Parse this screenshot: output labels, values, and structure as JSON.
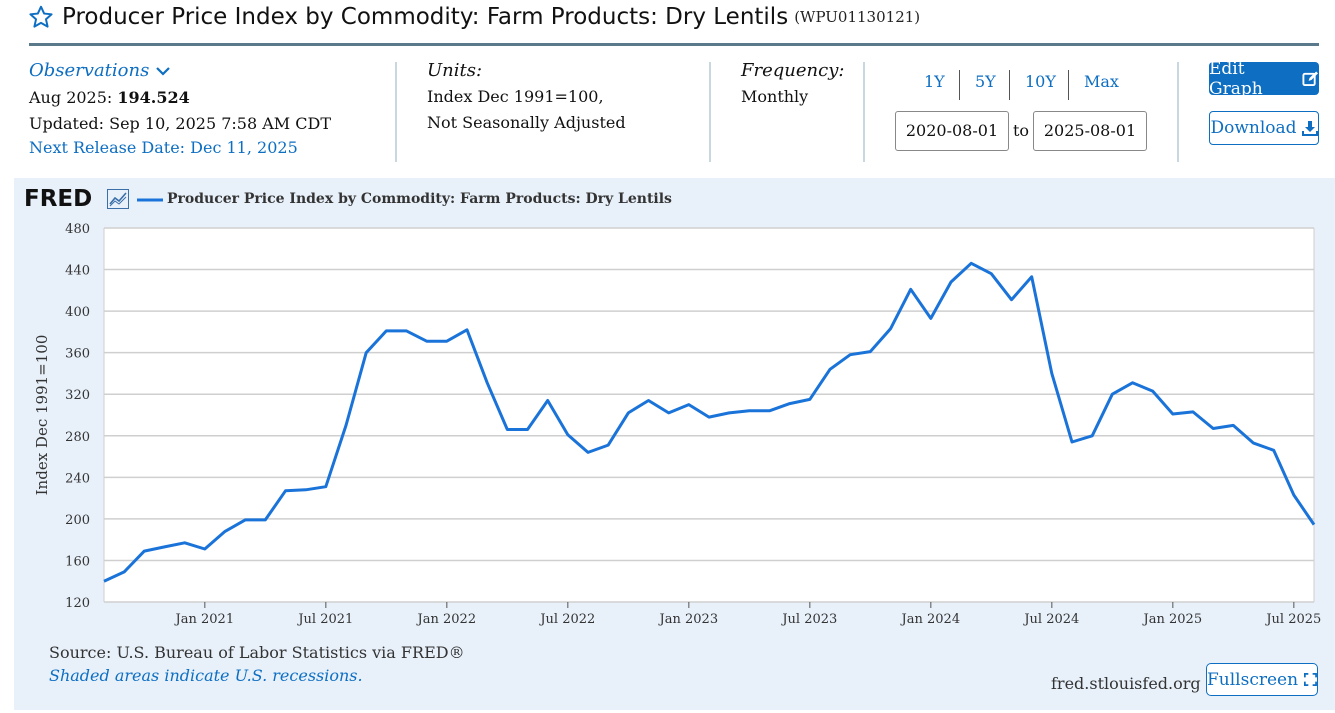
{
  "header": {
    "title": "Producer Price Index by Commodity: Farm Products: Dry Lentils",
    "series_id": "(WPU01130121)"
  },
  "observations": {
    "link_label": "Observations",
    "latest_label": "Aug 2025:",
    "latest_value": "194.524",
    "updated": "Updated: Sep 10, 2025 7:58 AM CDT",
    "next_release": "Next Release Date: Dec 11, 2025"
  },
  "units": {
    "label": "Units:",
    "line1": "Index Dec 1991=100,",
    "line2": "Not Seasonally Adjusted"
  },
  "frequency": {
    "label": "Frequency:",
    "value": "Monthly"
  },
  "range": {
    "buttons": [
      "1Y",
      "5Y",
      "10Y",
      "Max"
    ],
    "start": "2020-08-01",
    "to_label": "to",
    "end": "2025-08-01"
  },
  "actions": {
    "edit_label": "Edit Graph",
    "download_label": "Download",
    "fullscreen_label": "Fullscreen"
  },
  "graph_footer": {
    "source": "Source: U.S. Bureau of Labor Statistics via FRED®",
    "recession_note": "Shaded areas indicate U.S. recessions.",
    "site": "fred.stlouisfed.org"
  },
  "brand": {
    "logo": "FRED",
    "accent": "#0d6ec2",
    "line_color": "#1a73d9"
  },
  "chart_data": {
    "type": "line",
    "title": "Producer Price Index by Commodity: Farm Products: Dry Lentils",
    "ylabel": "Index Dec 1991=100",
    "ylim": [
      120,
      480
    ],
    "yticks": [
      120,
      160,
      200,
      240,
      280,
      320,
      360,
      400,
      440,
      480
    ],
    "xticks": [
      {
        "label": "Jan 2021",
        "month": "2021-01"
      },
      {
        "label": "Jul 2021",
        "month": "2021-07"
      },
      {
        "label": "Jan 2022",
        "month": "2022-01"
      },
      {
        "label": "Jul 2022",
        "month": "2022-07"
      },
      {
        "label": "Jan 2023",
        "month": "2023-01"
      },
      {
        "label": "Jul 2023",
        "month": "2023-07"
      },
      {
        "label": "Jan 2024",
        "month": "2024-01"
      },
      {
        "label": "Jul 2024",
        "month": "2024-07"
      },
      {
        "label": "Jan 2025",
        "month": "2025-01"
      },
      {
        "label": "Jul 2025",
        "month": "2025-07"
      }
    ],
    "grid": true,
    "series": [
      {
        "name": "Producer Price Index by Commodity: Farm Products: Dry Lentils",
        "x": [
          "2020-08",
          "2020-09",
          "2020-10",
          "2020-11",
          "2020-12",
          "2021-01",
          "2021-02",
          "2021-03",
          "2021-04",
          "2021-05",
          "2021-06",
          "2021-07",
          "2021-08",
          "2021-09",
          "2021-10",
          "2021-11",
          "2021-12",
          "2022-01",
          "2022-02",
          "2022-03",
          "2022-04",
          "2022-05",
          "2022-06",
          "2022-07",
          "2022-08",
          "2022-09",
          "2022-10",
          "2022-11",
          "2022-12",
          "2023-01",
          "2023-02",
          "2023-03",
          "2023-04",
          "2023-05",
          "2023-06",
          "2023-07",
          "2023-08",
          "2023-09",
          "2023-10",
          "2023-11",
          "2023-12",
          "2024-01",
          "2024-02",
          "2024-03",
          "2024-04",
          "2024-05",
          "2024-06",
          "2024-07",
          "2024-08",
          "2024-09",
          "2024-10",
          "2024-11",
          "2024-12",
          "2025-01",
          "2025-02",
          "2025-03",
          "2025-04",
          "2025-05",
          "2025-06",
          "2025-07",
          "2025-08"
        ],
        "values": [
          140,
          149,
          169,
          173,
          177,
          171,
          188,
          199,
          199,
          227,
          228,
          231,
          290,
          360,
          381,
          381,
          371,
          371,
          382,
          331,
          286,
          286,
          314,
          281,
          264,
          271,
          302,
          314,
          302,
          310,
          298,
          302,
          304,
          304,
          311,
          315,
          344,
          358,
          361,
          383,
          421,
          393,
          428,
          446,
          436,
          411,
          433,
          340,
          274,
          280,
          320,
          331,
          323,
          301,
          303,
          287,
          290,
          273,
          266,
          223,
          194.524
        ]
      }
    ]
  }
}
